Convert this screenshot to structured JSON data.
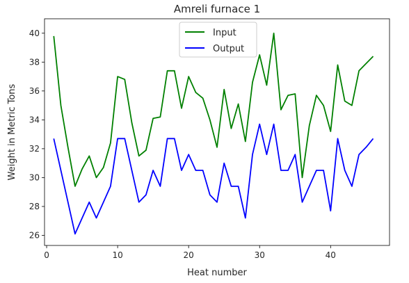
{
  "chart_data": {
    "type": "line",
    "title": "Amreli furnace 1",
    "xlabel": "Heat number",
    "ylabel": "Weight in Metric Tons",
    "xlim": [
      -0.3,
      48.3
    ],
    "ylim": [
      25.3,
      41.0
    ],
    "xticks": [
      0,
      10,
      20,
      30,
      40
    ],
    "yticks": [
      26,
      28,
      30,
      32,
      34,
      36,
      38,
      40
    ],
    "grid": false,
    "legend_position": "top-center",
    "x": [
      1,
      2,
      3,
      4,
      5,
      6,
      7,
      8,
      9,
      10,
      11,
      12,
      13,
      14,
      15,
      16,
      17,
      18,
      19,
      20,
      21,
      22,
      23,
      24,
      25,
      26,
      27,
      28,
      29,
      30,
      31,
      32,
      33,
      34,
      35,
      36,
      37,
      38,
      39,
      40,
      41,
      42,
      43,
      44,
      45,
      46
    ],
    "series": [
      {
        "name": "Input",
        "color": "#008000",
        "values": [
          39.8,
          35.0,
          32.1,
          29.4,
          30.6,
          31.5,
          30.0,
          30.7,
          32.4,
          37.0,
          36.8,
          33.8,
          31.5,
          31.9,
          34.1,
          34.2,
          37.4,
          37.4,
          34.8,
          37.0,
          35.9,
          35.5,
          34.0,
          32.1,
          36.1,
          33.4,
          35.1,
          32.5,
          36.6,
          38.5,
          36.4,
          40.0,
          34.7,
          35.7,
          35.8,
          30.0,
          33.6,
          35.7,
          35.0,
          33.2,
          37.8,
          35.3,
          35.0,
          37.4,
          37.9,
          38.4
        ]
      },
      {
        "name": "Output",
        "color": "#0000ff",
        "values": [
          32.7,
          30.5,
          28.3,
          26.1,
          27.2,
          28.3,
          27.2,
          28.3,
          29.4,
          32.7,
          32.7,
          30.5,
          28.3,
          28.8,
          30.5,
          29.4,
          32.7,
          32.7,
          30.5,
          31.6,
          30.5,
          30.5,
          28.8,
          28.3,
          31.0,
          29.4,
          29.4,
          27.2,
          31.6,
          33.7,
          31.6,
          33.7,
          30.5,
          30.5,
          31.6,
          28.3,
          29.4,
          30.5,
          30.5,
          27.7,
          32.7,
          30.5,
          29.4,
          31.6,
          32.1,
          32.7
        ]
      }
    ]
  }
}
